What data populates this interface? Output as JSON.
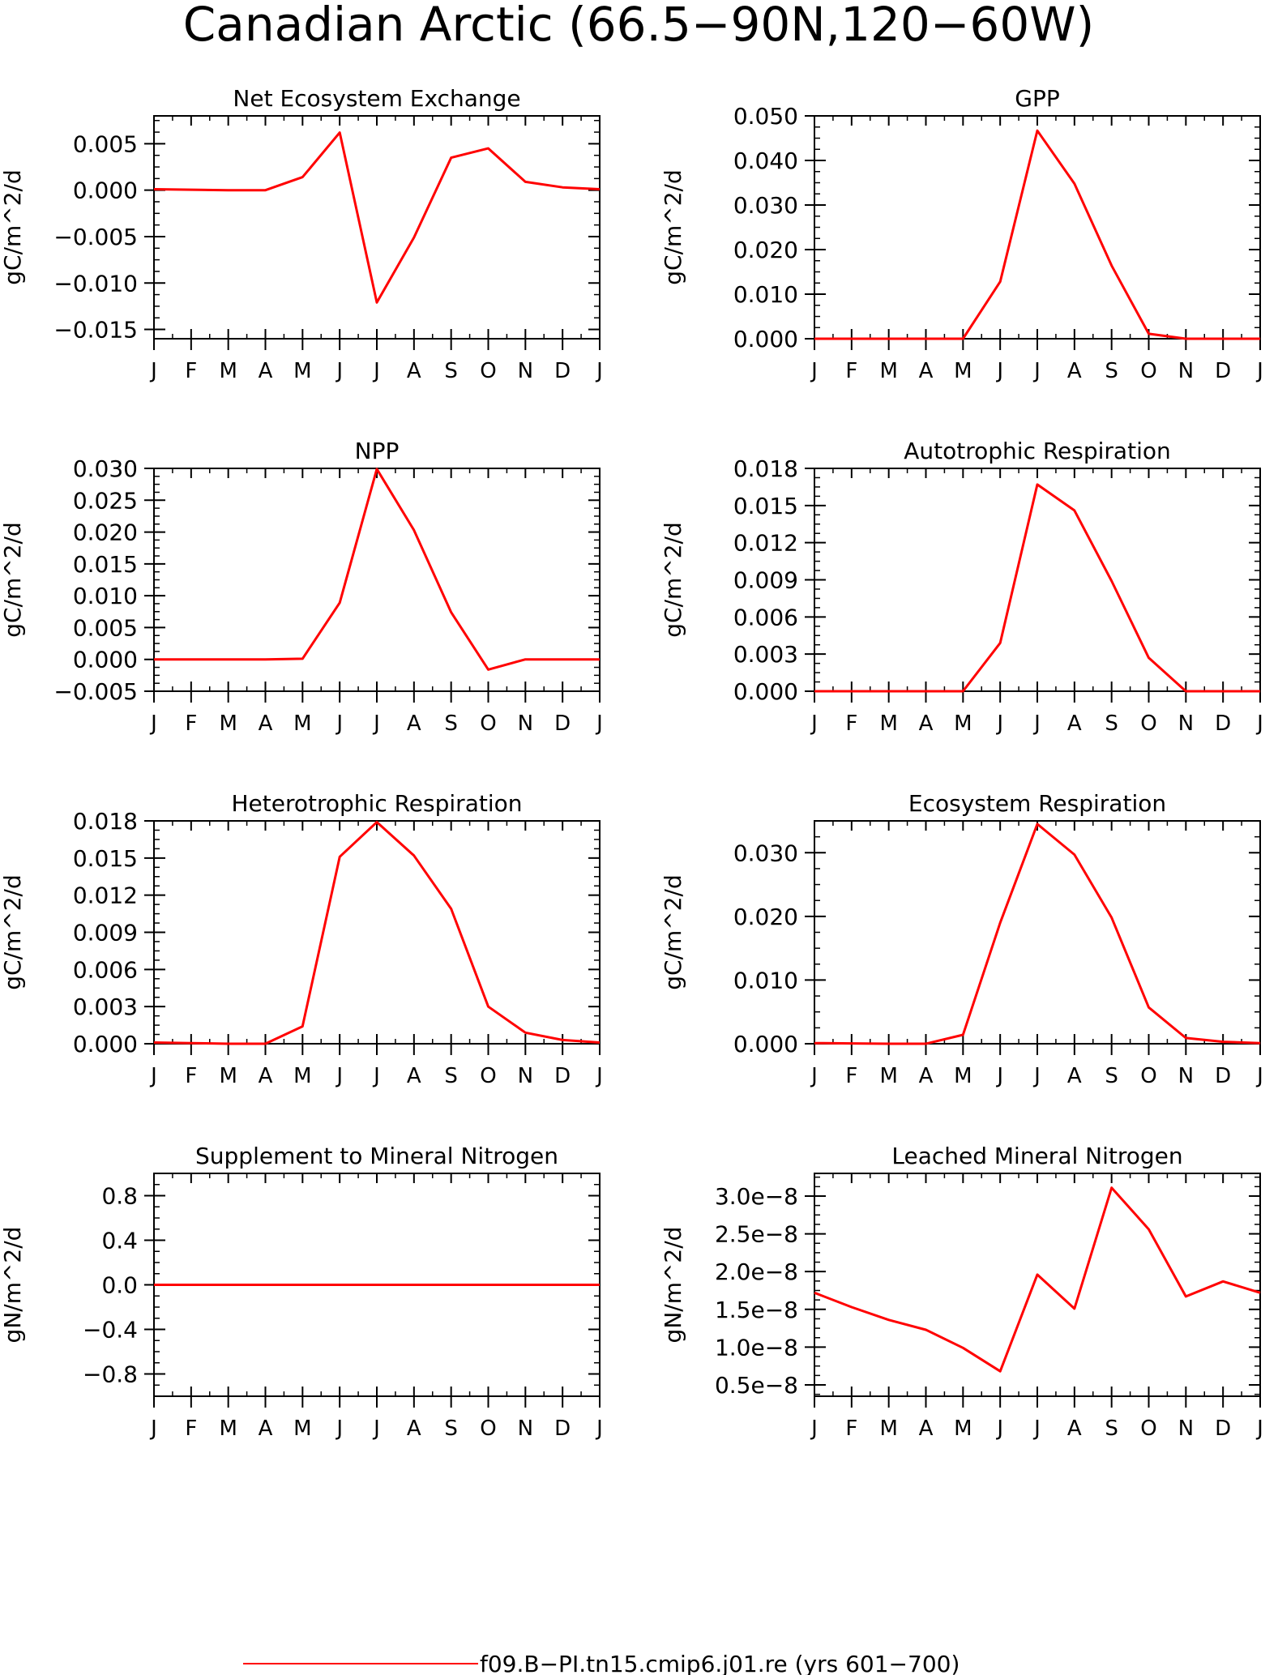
{
  "figure": {
    "title": "Canadian Arctic (66.5−90N,120−60W)",
    "series_color": "#ff0000",
    "legend": {
      "label": "f09.B−PI.tn15.cmip6.j01.re (yrs 601−700)",
      "position": "bottom-center"
    }
  },
  "chart_data": [
    {
      "type": "line",
      "title": "Net Ecosystem Exchange",
      "ylabel": "gC/m^2/d",
      "categories": [
        "J",
        "F",
        "M",
        "A",
        "M",
        "J",
        "J",
        "A",
        "S",
        "O",
        "N",
        "D",
        "J"
      ],
      "ylim": [
        -0.016,
        0.008
      ],
      "yticks": [
        0.005,
        0.0,
        -0.005,
        -0.01,
        -0.015
      ],
      "ytick_labels": [
        "0.005",
        "0.000",
        "−0.005",
        "−0.010",
        "−0.015"
      ],
      "series": [
        {
          "values": [
            0.0001,
            5e-05,
            0.0,
            0.0,
            0.0014,
            0.0062,
            -0.0121,
            -0.0051,
            0.0035,
            0.0045,
            0.0009,
            0.0003,
            0.0001
          ]
        }
      ]
    },
    {
      "type": "line",
      "title": "GPP",
      "ylabel": "gC/m^2/d",
      "categories": [
        "J",
        "F",
        "M",
        "A",
        "M",
        "J",
        "J",
        "A",
        "S",
        "O",
        "N",
        "D",
        "J"
      ],
      "ylim": [
        0.0,
        0.05
      ],
      "yticks": [
        0.05,
        0.04,
        0.03,
        0.02,
        0.01,
        0.0
      ],
      "ytick_labels": [
        "0.050",
        "0.040",
        "0.030",
        "0.020",
        "0.010",
        "0.000"
      ],
      "series": [
        {
          "values": [
            0.0,
            0.0,
            0.0,
            0.0,
            0.0,
            0.0128,
            0.0467,
            0.0348,
            0.0164,
            0.0011,
            0.0,
            0.0,
            0.0
          ]
        }
      ]
    },
    {
      "type": "line",
      "title": "NPP",
      "ylabel": "gC/m^2/d",
      "categories": [
        "J",
        "F",
        "M",
        "A",
        "M",
        "J",
        "J",
        "A",
        "S",
        "O",
        "N",
        "D",
        "J"
      ],
      "ylim": [
        -0.005,
        0.03
      ],
      "yticks": [
        0.03,
        0.025,
        0.02,
        0.015,
        0.01,
        0.005,
        0.0,
        -0.005
      ],
      "ytick_labels": [
        "0.030",
        "0.025",
        "0.020",
        "0.015",
        "0.010",
        "0.005",
        "0.000",
        "−0.005"
      ],
      "series": [
        {
          "values": [
            0.0,
            0.0,
            0.0,
            0.0,
            0.0001,
            0.0089,
            0.0299,
            0.0203,
            0.0074,
            -0.0016,
            0.0,
            0.0,
            0.0
          ]
        }
      ]
    },
    {
      "type": "line",
      "title": "Autotrophic Respiration",
      "ylabel": "gC/m^2/d",
      "categories": [
        "J",
        "F",
        "M",
        "A",
        "M",
        "J",
        "J",
        "A",
        "S",
        "O",
        "N",
        "D",
        "J"
      ],
      "ylim": [
        0.0,
        0.018
      ],
      "yticks": [
        0.018,
        0.015,
        0.012,
        0.009,
        0.006,
        0.003,
        0.0
      ],
      "ytick_labels": [
        "0.018",
        "0.015",
        "0.012",
        "0.009",
        "0.006",
        "0.003",
        "0.000"
      ],
      "series": [
        {
          "values": [
            0.0,
            0.0,
            0.0,
            0.0,
            0.0,
            0.0039,
            0.0167,
            0.0146,
            0.0089,
            0.0027,
            0.0,
            0.0,
            0.0
          ]
        }
      ]
    },
    {
      "type": "line",
      "title": "Heterotrophic Respiration",
      "ylabel": "gC/m^2/d",
      "categories": [
        "J",
        "F",
        "M",
        "A",
        "M",
        "J",
        "J",
        "A",
        "S",
        "O",
        "N",
        "D",
        "J"
      ],
      "ylim": [
        0.0,
        0.018
      ],
      "yticks": [
        0.018,
        0.015,
        0.012,
        0.009,
        0.006,
        0.003,
        0.0
      ],
      "ytick_labels": [
        "0.018",
        "0.015",
        "0.012",
        "0.009",
        "0.006",
        "0.003",
        "0.000"
      ],
      "series": [
        {
          "values": [
            0.0001,
            5e-05,
            0.0,
            0.0,
            0.0014,
            0.0151,
            0.0179,
            0.0152,
            0.0109,
            0.003,
            0.0009,
            0.0003,
            0.0001
          ]
        }
      ]
    },
    {
      "type": "line",
      "title": "Ecosystem Respiration",
      "ylabel": "gC/m^2/d",
      "categories": [
        "J",
        "F",
        "M",
        "A",
        "M",
        "J",
        "J",
        "A",
        "S",
        "O",
        "N",
        "D",
        "J"
      ],
      "ylim": [
        0.0,
        0.035
      ],
      "yticks": [
        0.03,
        0.02,
        0.01,
        0.0
      ],
      "ytick_labels": [
        "0.030",
        "0.020",
        "0.010",
        "0.000"
      ],
      "series": [
        {
          "values": [
            0.0001,
            5e-05,
            0.0,
            0.0,
            0.0014,
            0.019,
            0.0345,
            0.0297,
            0.0198,
            0.0057,
            0.0009,
            0.0003,
            0.0001
          ]
        }
      ]
    },
    {
      "type": "line",
      "title": "Supplement to Mineral Nitrogen",
      "ylabel": "gN/m^2/d",
      "categories": [
        "J",
        "F",
        "M",
        "A",
        "M",
        "J",
        "J",
        "A",
        "S",
        "O",
        "N",
        "D",
        "J"
      ],
      "ylim": [
        -1.0,
        1.0
      ],
      "yticks": [
        0.8,
        0.4,
        0.0,
        -0.4,
        -0.8
      ],
      "ytick_labels": [
        "0.8",
        "0.4",
        "0.0",
        "−0.4",
        "−0.8"
      ],
      "series": [
        {
          "values": [
            0,
            0,
            0,
            0,
            0,
            0,
            0,
            0,
            0,
            0,
            0,
            0,
            0
          ]
        }
      ]
    },
    {
      "type": "line",
      "title": "Leached Mineral Nitrogen",
      "ylabel": "gN/m^2/d",
      "categories": [
        "J",
        "F",
        "M",
        "A",
        "M",
        "J",
        "J",
        "A",
        "S",
        "O",
        "N",
        "D",
        "J"
      ],
      "ylim": [
        3.5e-09,
        3.3e-08
      ],
      "yticks": [
        3e-08,
        2.5e-08,
        2e-08,
        1.5e-08,
        1e-08,
        5e-09
      ],
      "ytick_labels": [
        "3.0e−8",
        "2.5e−8",
        "2.0e−8",
        "1.5e−8",
        "1.0e−8",
        "0.5e−8"
      ],
      "series": [
        {
          "values": [
            1.72e-08,
            1.53e-08,
            1.36e-08,
            1.23e-08,
            9.9e-09,
            6.8e-09,
            1.96e-08,
            1.51e-08,
            3.11e-08,
            2.56e-08,
            1.67e-08,
            1.87e-08,
            1.72e-08
          ]
        }
      ]
    }
  ]
}
